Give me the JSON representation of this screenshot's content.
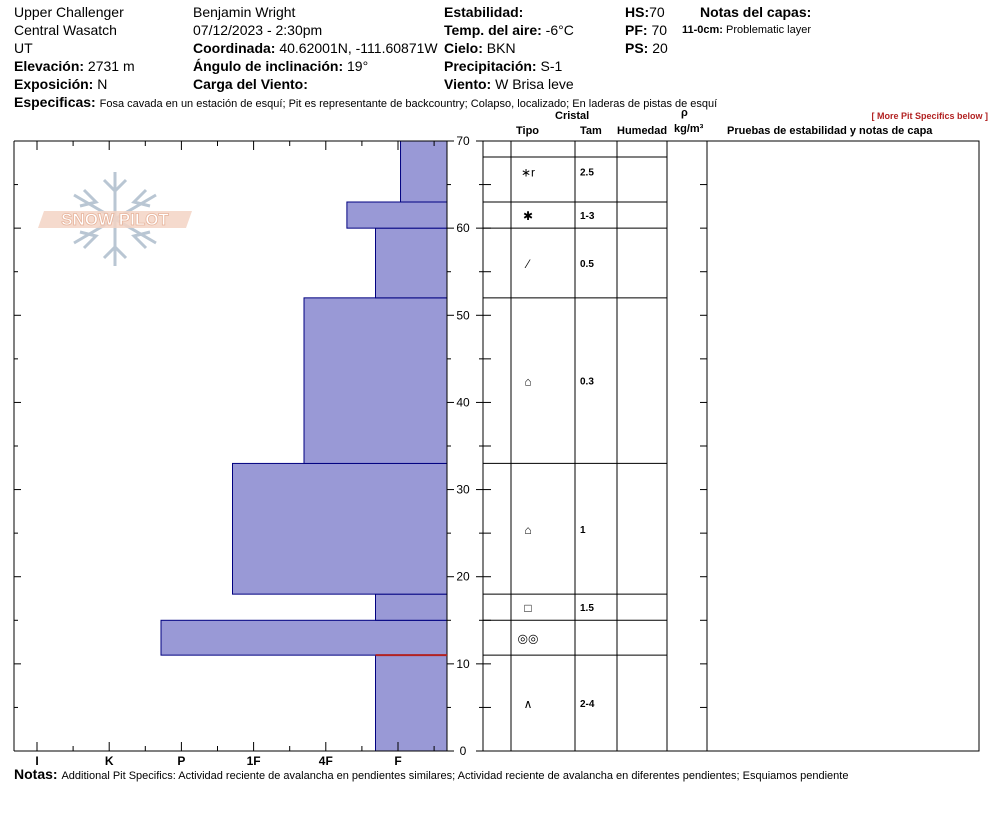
{
  "header": {
    "location": "Upper Challenger",
    "range": "Central Wasatch",
    "state": "UT",
    "elevation_label": "Elevación:",
    "elevation_value": "2731 m",
    "aspect_label": "Exposición:",
    "aspect_value": "N",
    "observer": "Benjamin Wright",
    "datetime": "07/12/2023 - 2:30pm",
    "coord_label": "Coordinada:",
    "coord_value": "40.62001N, -111.60871W",
    "slope_label": "Ángulo de inclinación:",
    "slope_value": "19°",
    "wind_load_label": "Carga del Viento:",
    "wind_load_value": "",
    "stability_label": "Estabilidad:",
    "stability_value": "",
    "air_temp_label": "Temp. del aire:",
    "air_temp_value": "-6°C",
    "sky_label": "Cielo:",
    "sky_value": "BKN",
    "precip_label": "Precipitación:",
    "precip_value": "S-1",
    "wind_label": "Viento:",
    "wind_value": "W Brisa leve",
    "hs_label": "HS:",
    "hs_value": "70",
    "pf_label": "PF:",
    "pf_value": "70",
    "ps_label": "PS:",
    "ps_value": "20",
    "layer_notes_label": "Notas del capas:",
    "layer_note_range": "11-0cm:",
    "layer_note_text": "Problematic layer",
    "specifics_label": "Especificas:",
    "specifics_text": "Fosa cavada en un estación de esquí; Pit es representante de backcountry; Colapso, localizado; En laderas de pistas de esquí",
    "more_specifics": "[ More Pit Specifics below ]"
  },
  "logo": {
    "text": "SNOW PILOT"
  },
  "columns": {
    "crystal": "Cristal",
    "type": "Tipo",
    "size": "Tam",
    "humidity": "Humedad",
    "rho": "ρ",
    "density_unit": "kg/m³",
    "stability_tests": "Pruebas de estabilidad y notas de capa"
  },
  "chart_data": {
    "type": "bar",
    "orientation": "horizontal",
    "title": "",
    "xlabel": "",
    "ylabel": "",
    "x_categories": [
      "I",
      "K",
      "P",
      "1F",
      "4F",
      "F"
    ],
    "ylim": [
      0,
      70
    ],
    "y_ticks": [
      0,
      10,
      20,
      30,
      40,
      50,
      60,
      70
    ],
    "bar_color": "#9999d6",
    "bar_edge": "#000080",
    "layers": [
      {
        "bottom": 0,
        "top": 11,
        "hardness": "F",
        "level": 1.0
      },
      {
        "bottom": 11,
        "top": 15,
        "hardness": "P",
        "level": 4.0
      },
      {
        "bottom": 15,
        "top": 18,
        "hardness": "F",
        "level": 1.0
      },
      {
        "bottom": 18,
        "top": 33,
        "hardness": "1F",
        "level": 3.0
      },
      {
        "bottom": 33,
        "top": 52,
        "hardness": "4F",
        "level": 2.0
      },
      {
        "bottom": 52,
        "top": 60,
        "hardness": "F",
        "level": 1.0
      },
      {
        "bottom": 60,
        "top": 63,
        "hardness": "F+ / 4F-",
        "level": 1.4
      },
      {
        "bottom": 63,
        "top": 70,
        "hardness": "F-",
        "level": 0.65
      }
    ],
    "problem_layer_depth": 11,
    "problem_layer_color": "#b22222",
    "crystals": [
      {
        "bottom": 63,
        "top": 70,
        "symbol": "∗r",
        "size": "2.5"
      },
      {
        "bottom": 60,
        "top": 63,
        "symbol": "✱",
        "size": "1-3"
      },
      {
        "bottom": 52,
        "top": 60,
        "symbol": "⁄",
        "size": "0.5"
      },
      {
        "bottom": 33,
        "top": 52,
        "symbol": "⌂",
        "size": "0.3"
      },
      {
        "bottom": 18,
        "top": 33,
        "symbol": "⌂",
        "size": "1"
      },
      {
        "bottom": 15,
        "top": 18,
        "symbol": "□",
        "size": "1.5"
      },
      {
        "bottom": 11,
        "top": 15,
        "symbol": "◎◎",
        "size": ""
      },
      {
        "bottom": 0,
        "top": 11,
        "symbol": "∧",
        "size": "2-4"
      }
    ]
  },
  "notes": {
    "label": "Notas:",
    "text": "Additional Pit Specifics: Actividad reciente de avalancha en pendientes similares; Actividad reciente de avalancha en diferentes pendientes; Esquiamos pendiente"
  }
}
